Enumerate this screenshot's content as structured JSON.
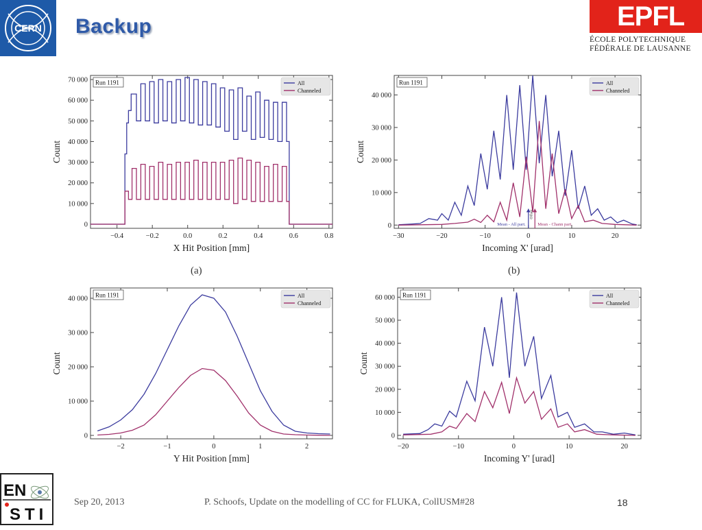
{
  "slide": {
    "title": "Backup",
    "cern_logo_text": "CERN",
    "epfl": {
      "word": "EPFL",
      "line1": "ÉCOLE POLYTECHNIQUE",
      "line2": "FÉDÉRALE DE LAUSANNE"
    },
    "enst_logo": {
      "row1": "EN",
      "row2": "STI"
    },
    "footer": {
      "date": "Sep 20, 2013",
      "text": "P. Schoofs, Update on the modelling of CC for FLUKA, CollUSM#28",
      "page": "18"
    },
    "sublabels": [
      "(a)",
      "(b)"
    ]
  },
  "colors": {
    "all": "#3b3b9e",
    "channeled": "#a0306a",
    "title": "#2f5aa8",
    "epfl_red": "#e2231a"
  },
  "chart_data": [
    {
      "type": "line",
      "style": "step",
      "run_label": "Run 1191",
      "xlabel": "X Hit Position [mm]",
      "ylabel": "Count",
      "xlim": [
        -0.55,
        0.82
      ],
      "ylim": [
        -2000,
        72000
      ],
      "xticks": [
        -0.4,
        -0.2,
        0.0,
        0.2,
        0.4,
        0.6,
        0.8
      ],
      "xtick_labels": [
        "−0.4",
        "−0.2",
        "0.0",
        "0.2",
        "0.4",
        "0.6",
        "0.8"
      ],
      "yticks": [
        0,
        10000,
        20000,
        30000,
        40000,
        50000,
        60000,
        70000
      ],
      "ytick_labels": [
        "0",
        "10 000",
        "20 000",
        "30 000",
        "40 000",
        "50 000",
        "60 000",
        "70 000"
      ],
      "legend": {
        "position": "top-right",
        "entries": [
          "All",
          "Channeled"
        ]
      },
      "series": [
        {
          "name": "All",
          "x": [
            -0.55,
            -0.355,
            -0.355,
            -0.345,
            -0.345,
            -0.335,
            -0.335,
            -0.32,
            -0.32,
            -0.29,
            -0.29,
            -0.265,
            -0.265,
            -0.24,
            -0.24,
            -0.215,
            -0.215,
            -0.19,
            -0.19,
            -0.165,
            -0.165,
            -0.14,
            -0.14,
            -0.115,
            -0.115,
            -0.09,
            -0.09,
            -0.065,
            -0.065,
            -0.04,
            -0.04,
            -0.015,
            -0.015,
            0.01,
            0.01,
            0.035,
            0.035,
            0.06,
            0.06,
            0.085,
            0.085,
            0.11,
            0.11,
            0.135,
            0.135,
            0.16,
            0.16,
            0.185,
            0.185,
            0.21,
            0.21,
            0.235,
            0.235,
            0.26,
            0.26,
            0.285,
            0.285,
            0.31,
            0.31,
            0.335,
            0.335,
            0.36,
            0.36,
            0.385,
            0.385,
            0.41,
            0.41,
            0.435,
            0.435,
            0.46,
            0.46,
            0.485,
            0.485,
            0.51,
            0.51,
            0.535,
            0.535,
            0.56,
            0.56,
            0.575,
            0.575,
            0.82
          ],
          "y": [
            0,
            0,
            34000,
            34000,
            49000,
            49000,
            55000,
            55000,
            63000,
            63000,
            50000,
            50000,
            68000,
            68000,
            50000,
            50000,
            69000,
            69000,
            49000,
            49000,
            70000,
            70000,
            50000,
            50000,
            69000,
            69000,
            49000,
            49000,
            70000,
            70000,
            50000,
            50000,
            71000,
            71000,
            49000,
            49000,
            70000,
            70000,
            48000,
            48000,
            69000,
            69000,
            48000,
            48000,
            68000,
            68000,
            47000,
            47000,
            66000,
            66000,
            45000,
            45000,
            65000,
            65000,
            41000,
            41000,
            66000,
            66000,
            45000,
            45000,
            62000,
            62000,
            41000,
            41000,
            64000,
            64000,
            42000,
            42000,
            60000,
            60000,
            41000,
            41000,
            59000,
            59000,
            40000,
            40000,
            59000,
            59000,
            40000,
            40000,
            0,
            0
          ]
        },
        {
          "name": "Channeled",
          "x": [
            -0.55,
            -0.355,
            -0.355,
            -0.335,
            -0.335,
            -0.315,
            -0.315,
            -0.29,
            -0.29,
            -0.265,
            -0.265,
            -0.24,
            -0.24,
            -0.215,
            -0.215,
            -0.19,
            -0.19,
            -0.165,
            -0.165,
            -0.14,
            -0.14,
            -0.115,
            -0.115,
            -0.09,
            -0.09,
            -0.065,
            -0.065,
            -0.04,
            -0.04,
            -0.015,
            -0.015,
            0.01,
            0.01,
            0.035,
            0.035,
            0.06,
            0.06,
            0.085,
            0.085,
            0.11,
            0.11,
            0.135,
            0.135,
            0.16,
            0.16,
            0.185,
            0.185,
            0.21,
            0.21,
            0.235,
            0.235,
            0.26,
            0.26,
            0.285,
            0.285,
            0.31,
            0.31,
            0.335,
            0.335,
            0.36,
            0.36,
            0.385,
            0.385,
            0.41,
            0.41,
            0.435,
            0.435,
            0.46,
            0.46,
            0.485,
            0.485,
            0.51,
            0.51,
            0.535,
            0.535,
            0.56,
            0.56,
            0.575,
            0.575,
            0.82
          ],
          "y": [
            0,
            0,
            16000,
            16000,
            12000,
            12000,
            27000,
            27000,
            12000,
            12000,
            29000,
            29000,
            12000,
            12000,
            28000,
            28000,
            12000,
            12000,
            30000,
            30000,
            12000,
            12000,
            29000,
            29000,
            12000,
            12000,
            30000,
            30000,
            12000,
            12000,
            30000,
            30000,
            12000,
            12000,
            31000,
            31000,
            12000,
            12000,
            30000,
            30000,
            12000,
            12000,
            30000,
            30000,
            12000,
            12000,
            30000,
            30000,
            12000,
            12000,
            31000,
            31000,
            10000,
            10000,
            32000,
            32000,
            12000,
            12000,
            31000,
            31000,
            11000,
            11000,
            30000,
            30000,
            11000,
            11000,
            28000,
            28000,
            11000,
            11000,
            29000,
            29000,
            11000,
            11000,
            28000,
            28000,
            11000,
            11000,
            0,
            0
          ]
        }
      ]
    },
    {
      "type": "line",
      "style": "step",
      "run_label": "Run 1191",
      "xlabel": "Incoming X' [urad]",
      "ylabel": "Count",
      "xlim": [
        -31,
        26
      ],
      "ylim": [
        -1000,
        46000
      ],
      "xticks": [
        -30,
        -20,
        -10,
        0,
        10,
        20
      ],
      "xtick_labels": [
        "−30",
        "−20",
        "−10",
        "0",
        "10",
        "20"
      ],
      "yticks": [
        0,
        10000,
        20000,
        30000,
        40000
      ],
      "ytick_labels": [
        "0",
        "10 000",
        "20 000",
        "30 000",
        "40 000"
      ],
      "legend": {
        "position": "top-right",
        "entries": [
          "All",
          "Channeled"
        ]
      },
      "annotations": {
        "offset": "Offset",
        "mean_all": "Mean - All part.",
        "mean_chan": "Mean - Chann part.",
        "mean_all_x": 0.0,
        "mean_chan_x": 1.5,
        "arrow_top_y": 5000
      },
      "series": [
        {
          "name": "All",
          "x": [
            -30,
            -27,
            -25,
            -23,
            -21,
            -20,
            -18.5,
            -17,
            -15.5,
            -14,
            -12.5,
            -11,
            -9.5,
            -8,
            -6.5,
            -5,
            -3.5,
            -2,
            -0.5,
            1,
            2.5,
            4,
            5.5,
            7,
            8.5,
            10,
            11.5,
            13,
            14.5,
            16,
            17.5,
            19,
            20.5,
            22,
            24,
            25
          ],
          "y": [
            100,
            300,
            500,
            2000,
            1500,
            3500,
            1500,
            7000,
            3000,
            12000,
            6000,
            22000,
            11000,
            29000,
            14000,
            40000,
            17000,
            43000,
            17000,
            46000,
            19000,
            40000,
            15000,
            29000,
            9000,
            23000,
            5000,
            12000,
            3000,
            5000,
            1500,
            2500,
            700,
            1500,
            300,
            100
          ]
        },
        {
          "name": "Channeled",
          "x": [
            -30,
            -25,
            -20,
            -17,
            -14,
            -12.5,
            -11,
            -9.5,
            -8,
            -6.5,
            -5,
            -3.5,
            -2,
            -0.5,
            1,
            2.5,
            4,
            5.5,
            7,
            8.5,
            10,
            11.5,
            13,
            15,
            17,
            20,
            25
          ],
          "y": [
            0,
            100,
            200,
            500,
            900,
            1800,
            800,
            3000,
            1000,
            7000,
            1500,
            13000,
            2500,
            21000,
            4000,
            32000,
            5000,
            22000,
            3500,
            11000,
            2000,
            6000,
            1000,
            1500,
            500,
            200,
            0
          ]
        }
      ]
    },
    {
      "type": "line",
      "style": "step",
      "run_label": "Run 1191",
      "xlabel": "Y Hit Position [mm]",
      "ylabel": "Count",
      "xlim": [
        -2.65,
        2.55
      ],
      "ylim": [
        -1000,
        43000
      ],
      "xticks": [
        -2,
        -1,
        0,
        1,
        2
      ],
      "xtick_labels": [
        "−2",
        "−1",
        "0",
        "1",
        "2"
      ],
      "yticks": [
        0,
        10000,
        20000,
        30000,
        40000
      ],
      "ytick_labels": [
        "0",
        "10 000",
        "20 000",
        "30 000",
        "40 000"
      ],
      "legend": {
        "position": "top-right",
        "entries": [
          "All",
          "Channeled"
        ]
      },
      "series": [
        {
          "name": "All",
          "x": [
            -2.5,
            -2.25,
            -2.0,
            -1.75,
            -1.5,
            -1.25,
            -1.0,
            -0.75,
            -0.5,
            -0.25,
            0.0,
            0.25,
            0.5,
            0.75,
            1.0,
            1.25,
            1.5,
            1.75,
            2.0,
            2.25,
            2.5
          ],
          "y": [
            1300,
            2500,
            4500,
            7500,
            12000,
            18000,
            25000,
            32000,
            38000,
            41000,
            40000,
            36000,
            29000,
            21000,
            13000,
            7000,
            3000,
            1200,
            700,
            500,
            400
          ]
        },
        {
          "name": "Channeled",
          "x": [
            -2.5,
            -2.25,
            -2.0,
            -1.75,
            -1.5,
            -1.25,
            -1.0,
            -0.75,
            -0.5,
            -0.25,
            0.0,
            0.25,
            0.5,
            0.75,
            1.0,
            1.25,
            1.5,
            1.75,
            2.0,
            2.25,
            2.5
          ],
          "y": [
            100,
            300,
            700,
            1500,
            3000,
            6000,
            10000,
            14000,
            17500,
            19500,
            19000,
            16000,
            11500,
            6500,
            3000,
            1200,
            400,
            200,
            100,
            50,
            0
          ]
        }
      ]
    },
    {
      "type": "line",
      "style": "step",
      "run_label": "Run 1191",
      "xlabel": "Incoming Y' [urad]",
      "ylabel": "Count",
      "xlim": [
        -21,
        23
      ],
      "ylim": [
        -1500,
        64000
      ],
      "xticks": [
        -20,
        -10,
        0,
        10,
        20
      ],
      "xtick_labels": [
        "−20",
        "−10",
        "0",
        "10",
        "20"
      ],
      "yticks": [
        0,
        10000,
        20000,
        30000,
        40000,
        50000,
        60000
      ],
      "ytick_labels": [
        "0",
        "10 000",
        "20 000",
        "30 000",
        "40 000",
        "50 000",
        "60 000"
      ],
      "legend": {
        "position": "top-right",
        "entries": [
          "All",
          "Channeled"
        ]
      },
      "series": [
        {
          "name": "All",
          "x": [
            -20,
            -17,
            -15.5,
            -14.3,
            -13,
            -11.6,
            -10.4,
            -8.5,
            -7,
            -5.3,
            -3.8,
            -2.2,
            -0.8,
            0.5,
            2,
            3.6,
            5,
            6.7,
            8,
            9.7,
            11,
            12.8,
            14.5,
            16,
            18,
            20,
            22
          ],
          "y": [
            500,
            800,
            2500,
            5000,
            4000,
            10500,
            8000,
            23500,
            15000,
            47000,
            30000,
            60000,
            25000,
            62000,
            30000,
            43000,
            16000,
            26000,
            8000,
            10000,
            3500,
            5000,
            1500,
            1500,
            500,
            1000,
            200
          ]
        },
        {
          "name": "Channeled",
          "x": [
            -20,
            -15,
            -13,
            -11.6,
            -10.4,
            -8.5,
            -7,
            -5.3,
            -3.8,
            -2.2,
            -0.8,
            0.5,
            2,
            3.6,
            5,
            6.7,
            8,
            9.7,
            11,
            12.8,
            15,
            18,
            22
          ],
          "y": [
            200,
            500,
            1500,
            4000,
            3000,
            9500,
            6000,
            19000,
            12000,
            23000,
            9500,
            25000,
            14000,
            19000,
            7000,
            11500,
            3500,
            5000,
            1500,
            2500,
            500,
            200,
            0
          ]
        }
      ]
    }
  ]
}
